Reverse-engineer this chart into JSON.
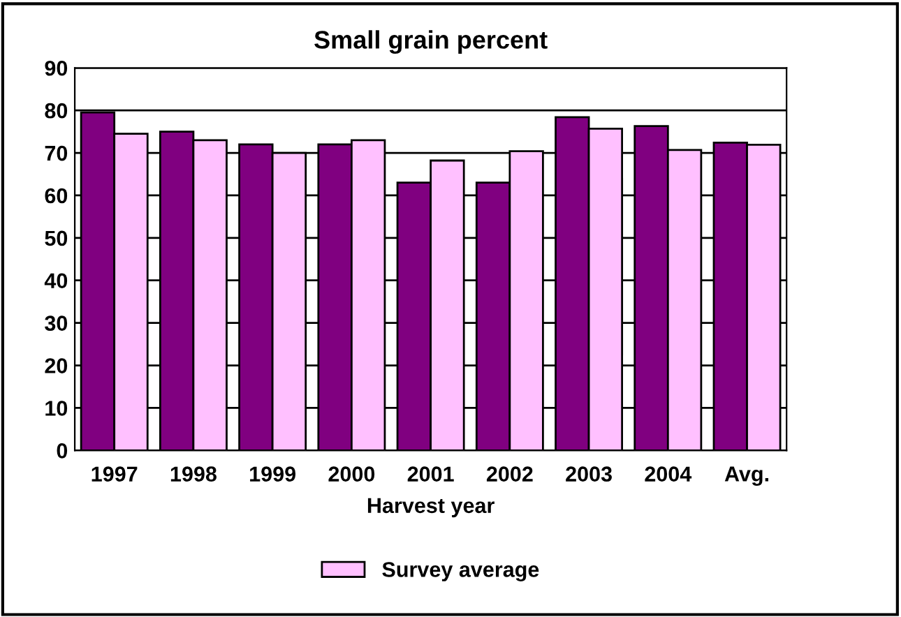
{
  "chart_data": {
    "type": "bar",
    "title": "Small grain percent",
    "xlabel": "Harvest year",
    "categories": [
      "1997",
      "1998",
      "1999",
      "2000",
      "2001",
      "2002",
      "2003",
      "2004",
      "Avg."
    ],
    "series": [
      {
        "color": "#800080",
        "values": [
          79.5,
          75,
          72,
          72,
          63,
          63,
          78.4,
          76.3,
          72.4
        ]
      },
      {
        "name": "Survey average",
        "color": "#ffc0ff",
        "values": [
          74.5,
          73,
          70,
          73,
          68.2,
          70.4,
          75.7,
          70.7,
          71.9
        ]
      }
    ],
    "ylim": [
      0,
      90
    ],
    "yticks": [
      0,
      10,
      20,
      30,
      40,
      50,
      60,
      70,
      80,
      90
    ],
    "grid": "y",
    "legend": "bottom"
  }
}
